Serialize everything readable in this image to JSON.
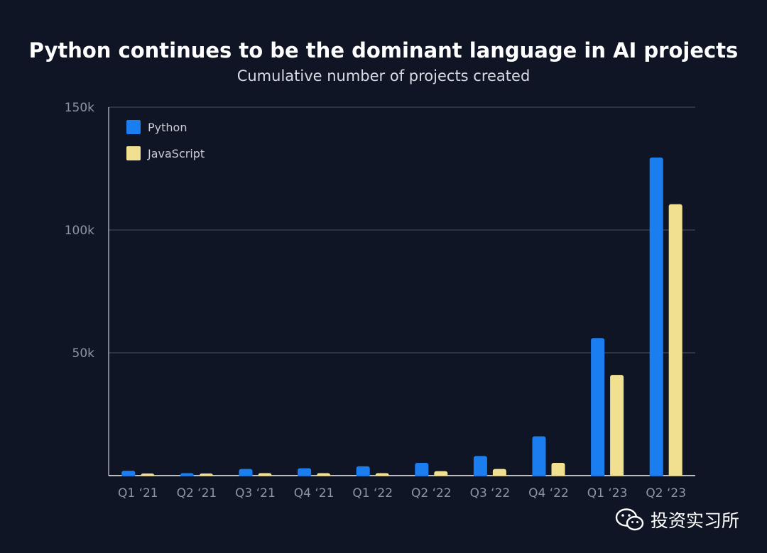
{
  "title": "Python continues to be the dominant language in AI projects",
  "subtitle": "Cumulative number of projects created",
  "chart_data": {
    "type": "bar",
    "title": "Python continues to be the dominant language in AI projects",
    "subtitle": "Cumulative number of projects created",
    "xlabel": "",
    "ylabel": "",
    "categories": [
      "Q1 ‘21",
      "Q2 ‘21",
      "Q3 ‘21",
      "Q4 ‘21",
      "Q1 ‘22",
      "Q2 ‘22",
      "Q3 ‘22",
      "Q4 ‘22",
      "Q1 ‘23",
      "Q2 ‘23"
    ],
    "series": [
      {
        "name": "Python",
        "color": "#1a7ef0",
        "values": [
          2000,
          1000,
          2700,
          3000,
          3800,
          5200,
          8000,
          16000,
          56000,
          129500
        ]
      },
      {
        "name": "JavaScript",
        "color": "#f1e08f",
        "values": [
          500,
          500,
          1000,
          1000,
          1000,
          1800,
          2700,
          5200,
          41000,
          110500
        ]
      }
    ],
    "ylim": [
      0,
      150000
    ],
    "yticks": [
      {
        "value": 50000,
        "label": "50k"
      },
      {
        "value": 100000,
        "label": "100k"
      },
      {
        "value": 150000,
        "label": "150k"
      }
    ],
    "grid": true,
    "legend_position": "top-left"
  },
  "watermark": {
    "text": "投资实习所",
    "icon": "wechat-icon"
  }
}
